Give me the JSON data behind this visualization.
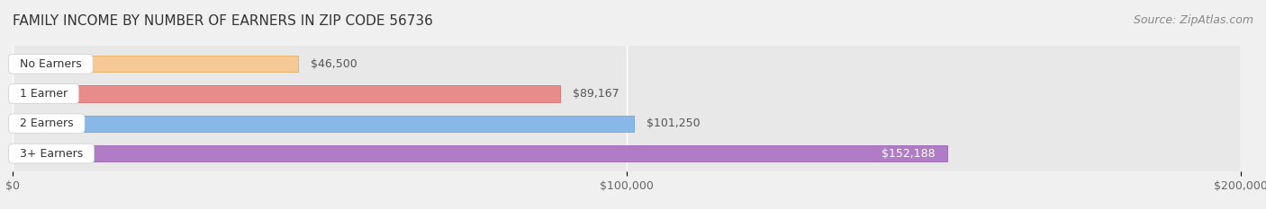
{
  "title": "FAMILY INCOME BY NUMBER OF EARNERS IN ZIP CODE 56736",
  "source": "Source: ZipAtlas.com",
  "categories": [
    "No Earners",
    "1 Earner",
    "2 Earners",
    "3+ Earners"
  ],
  "values": [
    46500,
    89167,
    101250,
    152188
  ],
  "bar_colors": [
    "#f5c894",
    "#e88b8b",
    "#87b8e8",
    "#b07cc6"
  ],
  "bar_edge_colors": [
    "#e8a850",
    "#d96060",
    "#5a9fd4",
    "#9055a8"
  ],
  "value_labels": [
    "$46,500",
    "$89,167",
    "$101,250",
    "$152,188"
  ],
  "x_ticks": [
    0,
    100000,
    200000
  ],
  "x_tick_labels": [
    "$0",
    "$100,000",
    "$200,000"
  ],
  "xlim": [
    0,
    200000
  ],
  "background_color": "#f0f0f0",
  "bar_bg_color": "#e8e8e8",
  "title_fontsize": 11,
  "source_fontsize": 9,
  "label_fontsize": 9,
  "value_fontsize": 9,
  "tick_fontsize": 9,
  "bar_height": 0.55,
  "figwidth": 14.06,
  "figheight": 2.33,
  "dpi": 100
}
